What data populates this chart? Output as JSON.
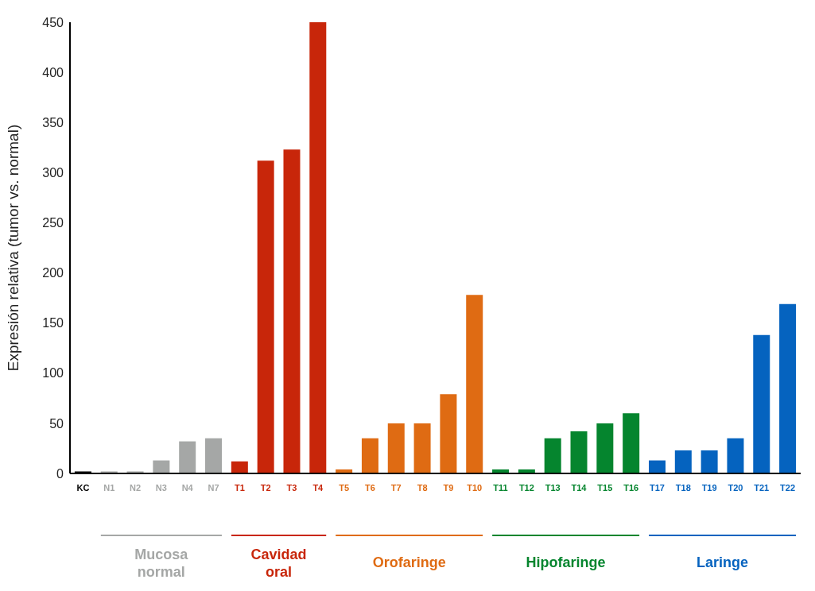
{
  "chart_data": {
    "type": "bar",
    "ylabel": "Expresión relativa (tumor vs. normal)",
    "categories": [
      "KC",
      "N1",
      "N2",
      "N3",
      "N4",
      "N7",
      "T1",
      "T2",
      "T3",
      "T4",
      "T5",
      "T6",
      "T7",
      "T8",
      "T9",
      "T10",
      "T11",
      "T12",
      "T13",
      "T14",
      "T15",
      "T16",
      "T17",
      "T18",
      "T19",
      "T20",
      "T21",
      "T22"
    ],
    "values": [
      2,
      2,
      2,
      13,
      32,
      35,
      12,
      312,
      323,
      450,
      4,
      35,
      50,
      50,
      79,
      178,
      4,
      4,
      35,
      42,
      50,
      60,
      13,
      23,
      23,
      35,
      138,
      169
    ],
    "colors": [
      "#000000",
      "#a5a7a6",
      "#a5a7a6",
      "#a5a7a6",
      "#a5a7a6",
      "#a5a7a6",
      "#c8260a",
      "#c8260a",
      "#c8260a",
      "#c8260a",
      "#df6b13",
      "#df6b13",
      "#df6b13",
      "#df6b13",
      "#df6b13",
      "#df6b13",
      "#05852e",
      "#05852e",
      "#05852e",
      "#05852e",
      "#05852e",
      "#05852e",
      "#0563bf",
      "#0563bf",
      "#0563bf",
      "#0563bf",
      "#0563bf",
      "#0563bf"
    ],
    "ylim": [
      0,
      450
    ],
    "yticks": [
      0,
      50,
      100,
      150,
      200,
      250,
      300,
      350,
      400,
      450
    ],
    "grid": false,
    "annotations": [
      "Mucosa normal",
      "Cavidad oral",
      "Orofaringe",
      "Hipofaringe",
      "Laringe"
    ]
  }
}
